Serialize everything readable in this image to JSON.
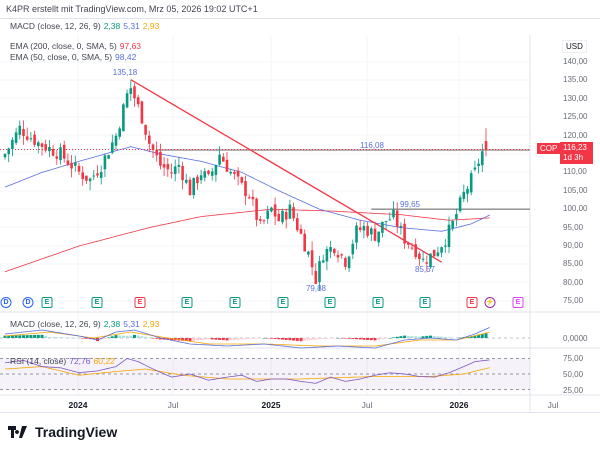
{
  "header": {
    "credit": "K4PR erstellt mit TradingView.com, Mrz 05, 2026 19:02 UTC+1"
  },
  "legends": {
    "macd_top": {
      "label": "MACD (close, 12, 26, 9)",
      "v1": "2,38",
      "v2": "5,31",
      "v3": "2,93"
    },
    "ema200": {
      "label": "EMA (200, close, 0, SMA, 5)",
      "value": "97,63"
    },
    "ema50": {
      "label": "EMA (50, close, 0, SMA, 5)",
      "value": "98,42"
    },
    "macd": {
      "label": "MACD (close, 12, 26, 9)",
      "v1": "2,38",
      "v2": "5,31",
      "v3": "2,93"
    },
    "rsi": {
      "label": "RSI (14, close)",
      "v1": "72,76",
      "v2": "60,22"
    }
  },
  "price_axis": {
    "currency": "USD",
    "ticks": [
      "140,00",
      "135,00",
      "130,00",
      "125,00",
      "120,00",
      "110,00",
      "105,00",
      "100,00",
      "95,00",
      "90,00",
      "85,00",
      "80,00",
      "75,00"
    ],
    "macd_tick": "0,0000",
    "rsi_ticks": [
      "75,00",
      "50,00",
      "25,00"
    ]
  },
  "symbol": {
    "ticker": "COP",
    "price": "116,23",
    "countdown": "1d 3h"
  },
  "annotations": {
    "high": "135,18",
    "level1": "116,08",
    "level2": "99,65",
    "low1": "79,88",
    "low2": "85,57"
  },
  "time_axis": [
    {
      "label": "2024",
      "bold": true
    },
    {
      "label": "Jul",
      "bold": false
    },
    {
      "label": "2025",
      "bold": true
    },
    {
      "label": "Jul",
      "bold": false
    },
    {
      "label": "2026",
      "bold": true
    },
    {
      "label": "Jul",
      "bold": false
    }
  ],
  "events": [
    {
      "t": "D",
      "k": "div"
    },
    {
      "t": "D",
      "k": "div"
    },
    {
      "t": "E",
      "k": "eg"
    },
    {
      "t": "E",
      "k": "eg"
    },
    {
      "t": "E",
      "k": "er"
    },
    {
      "t": "E",
      "k": "eg"
    },
    {
      "t": "E",
      "k": "eg"
    },
    {
      "t": "E",
      "k": "eg"
    },
    {
      "t": "E",
      "k": "eg"
    },
    {
      "t": "E",
      "k": "eg"
    },
    {
      "t": "E",
      "k": "eg"
    },
    {
      "t": "E",
      "k": "er"
    },
    {
      "t": "⚡",
      "k": "sp"
    },
    {
      "t": "E",
      "k": "fut"
    }
  ],
  "colors": {
    "up": "#089981",
    "down": "#f23645",
    "ema50": "#5b6ee1",
    "ema200": "#f23645",
    "signal": "#f7a600",
    "rsi": "#7e57c2"
  },
  "chart_data": {
    "type": "candlestick",
    "ylim": [
      72,
      143
    ],
    "close_path": [
      [
        0,
        115
      ],
      [
        4,
        122
      ],
      [
        9,
        118
      ],
      [
        15,
        115
      ],
      [
        20,
        110
      ],
      [
        23,
        108
      ],
      [
        26,
        112
      ],
      [
        30,
        120
      ],
      [
        33,
        131
      ],
      [
        34,
        133
      ],
      [
        37,
        125
      ],
      [
        39,
        118
      ],
      [
        42,
        112
      ],
      [
        45,
        110
      ],
      [
        47,
        112
      ],
      [
        50,
        105
      ],
      [
        53,
        110
      ],
      [
        55,
        108
      ],
      [
        58,
        115
      ],
      [
        61,
        110
      ],
      [
        64,
        106
      ],
      [
        66,
        104
      ],
      [
        69,
        95
      ],
      [
        72,
        100
      ],
      [
        74,
        97
      ],
      [
        77,
        100
      ],
      [
        80,
        93
      ],
      [
        82,
        88
      ],
      [
        84,
        81
      ],
      [
        86,
        88
      ],
      [
        89,
        90
      ],
      [
        92,
        86
      ],
      [
        95,
        94
      ],
      [
        97,
        95
      ],
      [
        100,
        93
      ],
      [
        103,
        97
      ],
      [
        105,
        98
      ],
      [
        108,
        92
      ],
      [
        111,
        89
      ],
      [
        113,
        86
      ],
      [
        116,
        88
      ],
      [
        119,
        92
      ],
      [
        121,
        96
      ],
      [
        124,
        104
      ],
      [
        127,
        110
      ],
      [
        128,
        113
      ],
      [
        129,
        115.5
      ],
      [
        130,
        116.23
      ]
    ],
    "ema50_path": [
      [
        0,
        106
      ],
      [
        10,
        110
      ],
      [
        20,
        113
      ],
      [
        34,
        117
      ],
      [
        42,
        115
      ],
      [
        53,
        113
      ],
      [
        64,
        110
      ],
      [
        74,
        105
      ],
      [
        85,
        100
      ],
      [
        96,
        97
      ],
      [
        107,
        95
      ],
      [
        118,
        94
      ],
      [
        126,
        96
      ],
      [
        131,
        98.42
      ]
    ],
    "ema200_path": [
      [
        0,
        83
      ],
      [
        20,
        90
      ],
      [
        39,
        95
      ],
      [
        53,
        98
      ],
      [
        72,
        100
      ],
      [
        88,
        99.5
      ],
      [
        107,
        98.5
      ],
      [
        120,
        97
      ],
      [
        131,
        97.63
      ]
    ],
    "trendline": {
      "from": [
        34,
        135.18
      ],
      "to": [
        118,
        85.6
      ]
    },
    "levels": [
      {
        "value": 116.08,
        "from": 41
      },
      {
        "value": 100,
        "from": 99
      }
    ],
    "macd_path": [
      [
        0,
        2
      ],
      [
        10,
        4
      ],
      [
        20,
        1
      ],
      [
        25,
        -1
      ],
      [
        30,
        3
      ],
      [
        35,
        4
      ],
      [
        42,
        0
      ],
      [
        50,
        -3
      ],
      [
        60,
        -4
      ],
      [
        70,
        -3
      ],
      [
        80,
        -5
      ],
      [
        90,
        -4
      ],
      [
        100,
        -5
      ],
      [
        108,
        -1
      ],
      [
        115,
        0
      ],
      [
        122,
        -1
      ],
      [
        127,
        2
      ],
      [
        131,
        5.31
      ]
    ],
    "signal_path": [
      [
        0,
        1
      ],
      [
        12,
        3
      ],
      [
        24,
        0
      ],
      [
        34,
        3
      ],
      [
        44,
        0
      ],
      [
        55,
        -3
      ],
      [
        70,
        -3
      ],
      [
        85,
        -4
      ],
      [
        100,
        -4
      ],
      [
        112,
        -1
      ],
      [
        122,
        -1
      ],
      [
        131,
        2.93
      ]
    ],
    "rsi_path": [
      [
        0,
        68
      ],
      [
        5,
        72
      ],
      [
        10,
        62
      ],
      [
        15,
        60
      ],
      [
        20,
        52
      ],
      [
        25,
        55
      ],
      [
        30,
        62
      ],
      [
        33,
        75
      ],
      [
        36,
        70
      ],
      [
        40,
        58
      ],
      [
        45,
        45
      ],
      [
        50,
        50
      ],
      [
        55,
        40
      ],
      [
        60,
        45
      ],
      [
        64,
        48
      ],
      [
        68,
        38
      ],
      [
        72,
        42
      ],
      [
        76,
        42
      ],
      [
        80,
        38
      ],
      [
        84,
        35
      ],
      [
        88,
        45
      ],
      [
        92,
        38
      ],
      [
        96,
        42
      ],
      [
        100,
        48
      ],
      [
        104,
        52
      ],
      [
        108,
        50
      ],
      [
        112,
        46
      ],
      [
        116,
        45
      ],
      [
        120,
        52
      ],
      [
        124,
        62
      ],
      [
        127,
        70
      ],
      [
        131,
        72.76
      ]
    ],
    "rsi_ma_path": [
      [
        0,
        58
      ],
      [
        10,
        62
      ],
      [
        20,
        48
      ],
      [
        30,
        54
      ],
      [
        38,
        58
      ],
      [
        48,
        48
      ],
      [
        60,
        42
      ],
      [
        80,
        42
      ],
      [
        100,
        46
      ],
      [
        115,
        46
      ],
      [
        124,
        50
      ],
      [
        131,
        60.22
      ]
    ]
  }
}
